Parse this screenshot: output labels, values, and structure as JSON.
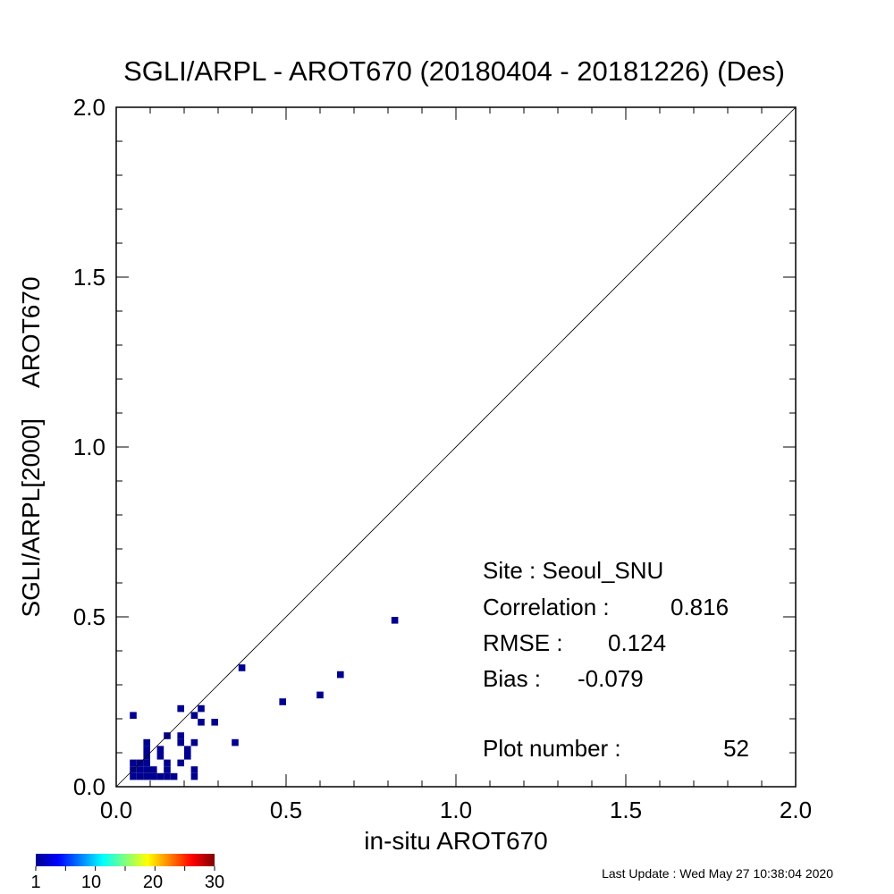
{
  "chart_data": {
    "type": "heatmap",
    "title": "SGLI/ARPL - AROT670 (20180404 - 20181226) (Des)",
    "xlabel": "in-situ AROT670",
    "ylabel_part1": "SGLI/ARPL[2000]",
    "ylabel_part2": "AROT670",
    "xlim": [
      0.0,
      2.0
    ],
    "ylim": [
      0.0,
      2.0
    ],
    "x_ticks": [
      "0.0",
      "0.5",
      "1.0",
      "1.5",
      "2.0"
    ],
    "y_ticks": [
      "0.0",
      "0.5",
      "1.0",
      "1.5",
      "2.0"
    ],
    "one_to_one_line": true,
    "grid": false,
    "bin_size": 0.02,
    "bin_color": "#00008f",
    "points": [
      [
        0.05,
        0.21
      ],
      [
        0.05,
        0.07
      ],
      [
        0.07,
        0.07
      ],
      [
        0.09,
        0.07
      ],
      [
        0.05,
        0.05
      ],
      [
        0.07,
        0.05
      ],
      [
        0.09,
        0.05
      ],
      [
        0.11,
        0.05
      ],
      [
        0.05,
        0.03
      ],
      [
        0.07,
        0.03
      ],
      [
        0.09,
        0.03
      ],
      [
        0.11,
        0.03
      ],
      [
        0.09,
        0.13
      ],
      [
        0.09,
        0.11
      ],
      [
        0.09,
        0.09
      ],
      [
        0.13,
        0.11
      ],
      [
        0.13,
        0.09
      ],
      [
        0.13,
        0.03
      ],
      [
        0.15,
        0.03
      ],
      [
        0.17,
        0.03
      ],
      [
        0.15,
        0.15
      ],
      [
        0.15,
        0.07
      ],
      [
        0.15,
        0.05
      ],
      [
        0.19,
        0.23
      ],
      [
        0.19,
        0.15
      ],
      [
        0.19,
        0.13
      ],
      [
        0.19,
        0.07
      ],
      [
        0.21,
        0.11
      ],
      [
        0.21,
        0.09
      ],
      [
        0.23,
        0.21
      ],
      [
        0.23,
        0.13
      ],
      [
        0.23,
        0.05
      ],
      [
        0.23,
        0.03
      ],
      [
        0.25,
        0.23
      ],
      [
        0.25,
        0.19
      ],
      [
        0.29,
        0.19
      ],
      [
        0.35,
        0.13
      ],
      [
        0.37,
        0.35
      ],
      [
        0.49,
        0.25
      ],
      [
        0.6,
        0.27
      ],
      [
        0.66,
        0.33
      ],
      [
        0.82,
        0.49
      ]
    ],
    "colorbar": {
      "ticks": [
        "1",
        "10",
        "20",
        "30"
      ],
      "colors": [
        "#00008f",
        "#0000ff",
        "#0080ff",
        "#00ffff",
        "#80ff80",
        "#ffff00",
        "#ff8000",
        "#ff0000",
        "#800000"
      ]
    }
  },
  "stats": {
    "site": "Site : Seoul_SNU",
    "correlation_label": "Correlation :",
    "correlation_value": "0.816",
    "rmse_label": "RMSE :",
    "rmse_value": "0.124",
    "bias_label": "Bias :",
    "bias_value": "-0.079",
    "plot_number_label": "Plot number :",
    "plot_number_value": "52"
  },
  "footer": {
    "last_update": "Last Update : Wed May 27 10:38:04 2020"
  }
}
